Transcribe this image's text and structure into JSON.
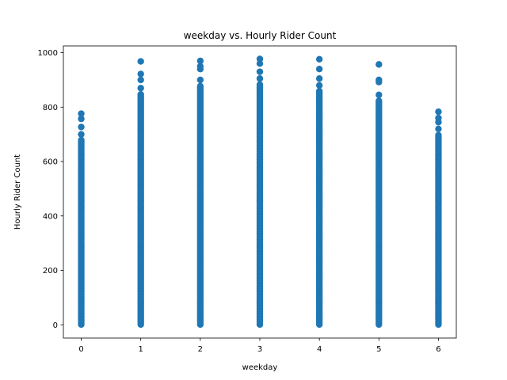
{
  "chart_data": {
    "type": "scatter",
    "title": "weekday vs. Hourly Rider Count",
    "xlabel": "weekday",
    "ylabel": "Hourly Rider Count",
    "xlim": [
      -0.3,
      6.3
    ],
    "ylim": [
      -48.8,
      1025
    ],
    "x_ticks": [
      "0",
      "1",
      "2",
      "3",
      "4",
      "5",
      "6"
    ],
    "y_ticks": [
      "0",
      "200",
      "400",
      "600",
      "800",
      "1000"
    ],
    "grid": false,
    "marker_color": "#1f77b4",
    "series": [
      {
        "x": 0,
        "y_range": [
          1,
          776
        ],
        "outliers": [
          757,
          727,
          700
        ]
      },
      {
        "x": 1,
        "y_range": [
          1,
          968
        ],
        "outliers": [
          922,
          900,
          870
        ]
      },
      {
        "x": 2,
        "y_range": [
          1,
          970
        ],
        "outliers": [
          950,
          940,
          900
        ]
      },
      {
        "x": 3,
        "y_range": [
          1,
          977
        ],
        "outliers": [
          960,
          930,
          905
        ]
      },
      {
        "x": 4,
        "y_range": [
          1,
          976
        ],
        "outliers": [
          940,
          905,
          880
        ]
      },
      {
        "x": 5,
        "y_range": [
          1,
          957
        ],
        "outliers": [
          900,
          892,
          845
        ]
      },
      {
        "x": 6,
        "y_range": [
          1,
          783
        ],
        "outliers": [
          760,
          745,
          720
        ]
      }
    ]
  }
}
